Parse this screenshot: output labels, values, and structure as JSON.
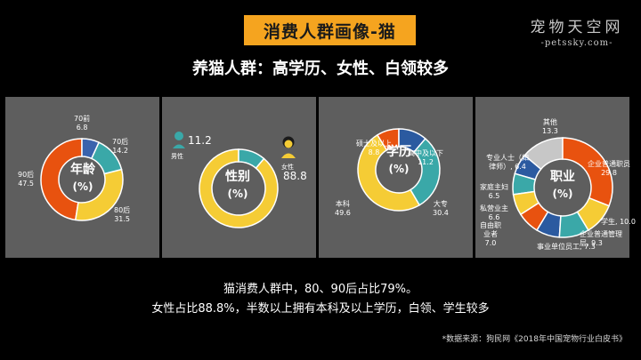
{
  "header": {
    "title": "消费人群画像-猫",
    "subtitle": "养猫人群：高学历、女性、白领较多",
    "watermark_main": "宠物天空网",
    "watermark_sub": "-petssky.com-"
  },
  "colors": {
    "accent": "#f5a41f",
    "panel_bg": "#5e5e5e",
    "orange": "#e8520f",
    "teal": "#3aa8a8",
    "yellow": "#f5cc35",
    "blue": "#2b5aa0",
    "gray": "#c7c7c7"
  },
  "chart_data": [
    {
      "type": "pie",
      "subtype": "donut",
      "title": "年龄",
      "unit": "(%)",
      "slices": [
        {
          "name": "70前",
          "value": 6.8,
          "color": "#3a63ad"
        },
        {
          "name": "70后",
          "value": 14.2,
          "color": "#3aa8a8"
        },
        {
          "name": "80后",
          "value": 31.5,
          "color": "#f5cc35"
        },
        {
          "name": "90后",
          "value": 47.5,
          "color": "#e8520f"
        }
      ]
    },
    {
      "type": "pie",
      "subtype": "donut",
      "title": "性别",
      "unit": "(%)",
      "slices": [
        {
          "name": "男性",
          "value": 11.2,
          "color": "#3aa8a8",
          "icon": "male-person-icon"
        },
        {
          "name": "女性",
          "value": 88.8,
          "color": "#f5cc35",
          "icon": "female-person-icon"
        }
      ]
    },
    {
      "type": "pie",
      "subtype": "donut",
      "title": "学历",
      "unit": "(%)",
      "slices": [
        {
          "name": "高中及以下",
          "value": 11.2,
          "color": "#2b5aa0"
        },
        {
          "name": "大专",
          "value": 30.4,
          "color": "#3aa8a8"
        },
        {
          "name": "本科",
          "value": 49.6,
          "color": "#f5cc35"
        },
        {
          "name": "硕士及以上",
          "value": 8.8,
          "color": "#e8520f"
        }
      ]
    },
    {
      "type": "pie",
      "subtype": "donut",
      "title": "职业",
      "unit": "(%)",
      "slices": [
        {
          "name": "企业普通职员",
          "value": 29.8,
          "color": "#e8520f"
        },
        {
          "name": "学生",
          "value": 10.0,
          "color": "#f5cc35"
        },
        {
          "name": "企业普通管理层",
          "value": 9.3,
          "color": "#3aa8a8"
        },
        {
          "name": "事业单位员工",
          "value": 7.3,
          "color": "#2b5aa0"
        },
        {
          "name": "自由职业者",
          "value": 7.0,
          "color": "#e8520f"
        },
        {
          "name": "私营业主",
          "value": 6.6,
          "color": "#f5cc35"
        },
        {
          "name": "家庭主妇",
          "value": 6.5,
          "color": "#3aa8a8"
        },
        {
          "name": "专业人士（如律师）",
          "value": 6.4,
          "color": "#2b5aa0"
        },
        {
          "name": "其他",
          "value": 13.3,
          "color": "#c7c7c7"
        }
      ]
    }
  ],
  "labels": {
    "age": {
      "l70q_name": "70前",
      "l70q_val": "6.8",
      "l70h_name": "70后",
      "l70h_val": "14.2",
      "l80_name": "80后",
      "l80_val": "31.5",
      "l90_name": "90后",
      "l90_val": "47.5"
    },
    "gender": {
      "male_val": "11.2",
      "male_name": "男性",
      "female_val": "88.8",
      "female_name": "女性"
    },
    "edu": {
      "shuoshi": "硕士及以上",
      "shuoshi_val": "8.8",
      "gaozhong": "高中及以下",
      "gaozhong_val": "11.2",
      "dazhuan": "大专",
      "dazhuan_val": "30.4",
      "benke": "本科",
      "benke_val": "49.6"
    },
    "job": {
      "qita": "其他",
      "qita_val": "13.3",
      "zhiyuan": "企业普通职员",
      "zhiyuan_val": "29.8",
      "xuesheng": "学生",
      "xuesheng_val": "10.0",
      "guanli1": "企业普通管理",
      "guanli2": "层",
      "guanli_val": "9.3",
      "shiye": "事业单位员工",
      "shiye_val": "7.3",
      "ziyou1": "自由职",
      "ziyou2": "业者",
      "ziyou_val": "7.0",
      "siying": "私营业主",
      "siying_val": "6.6",
      "jiating": "家庭主妇",
      "jiating_val": "6.5",
      "zhuanye1": "专业人士（如",
      "zhuanye2": "律师）",
      "zhuanye_val": "6.4"
    }
  },
  "summary": {
    "line1": "猫消费人群中，80、90后占比79%。",
    "line2": "女性占比88.8%，半数以上拥有本科及以上学历，白领、学生较多",
    "source": "*数据来源：狗民网《2018年中国宠物行业白皮书》"
  }
}
